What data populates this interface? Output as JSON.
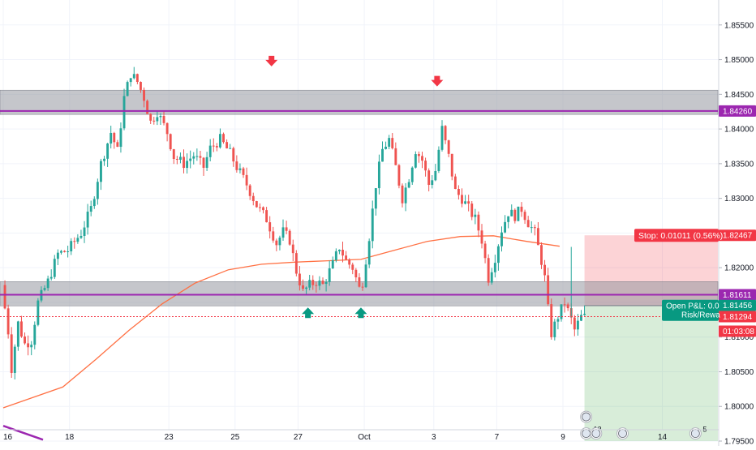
{
  "chart_data": {
    "type": "candlestick",
    "y_axis": {
      "range": [
        1.7943,
        1.8586
      ],
      "ticks": [
        "1.85500",
        "1.85000",
        "1.84500",
        "1.84000",
        "1.83500",
        "1.83000",
        "1.82500",
        "1.82000",
        "1.81500",
        "1.81000",
        "1.80500",
        "1.80000",
        "1.79500"
      ],
      "tick_values": [
        1.855,
        1.85,
        1.845,
        1.84,
        1.835,
        1.83,
        1.825,
        1.82,
        1.815,
        1.81,
        1.805,
        1.8,
        1.795
      ]
    },
    "x_axis": {
      "labels": [
        "16",
        "18",
        "23",
        "25",
        "27",
        "Oct",
        "3",
        "7",
        "9",
        "14"
      ],
      "label_positions": [
        0,
        20,
        50,
        70,
        89,
        109,
        130,
        149,
        169,
        199
      ]
    },
    "bar_count": 176,
    "price_labels": [
      {
        "text": "1.84260",
        "value": 1.8426,
        "color": "#9c27b0"
      },
      {
        "text": "1.82467",
        "value": 1.82467,
        "color": "#f23645"
      },
      {
        "text": "1.81611",
        "value": 1.81611,
        "color": "#9c27b0"
      },
      {
        "text": "1.81456",
        "value": 1.81456,
        "color": "#089981"
      },
      {
        "text": "1.81294",
        "value": 1.81294,
        "color": "#f23645"
      },
      {
        "text": "01:03:08",
        "value": 1.81084,
        "color": "#f23645"
      }
    ],
    "zones": [
      {
        "name": "resistance-zone",
        "from": 1.8456,
        "to": 1.8421,
        "color": "#9598a1"
      },
      {
        "name": "support-zone",
        "from": 1.818,
        "to": 1.8145,
        "color": "#9598a1"
      }
    ],
    "horizontal_lines": [
      {
        "name": "resistance-line",
        "value": 1.8426,
        "color": "#9c27b0"
      },
      {
        "name": "support-line",
        "value": 1.81611,
        "color": "#9c27b0"
      },
      {
        "name": "last-price-line",
        "value": 1.81294,
        "color": "#f23645"
      }
    ],
    "position": {
      "entry": 1.81456,
      "stop": 1.82467,
      "target_bottom": 1.795,
      "start_bar": 175.5,
      "stop_label": "Stop: 0.01011 (0.56%)",
      "pnl_label": "Open P&L: 0.0",
      "rr_label": "Risk/Rewa"
    },
    "markers": [
      {
        "name": "top-arrow-1",
        "bar": 81,
        "value": 1.8495,
        "dir": "down",
        "color": "#f23645"
      },
      {
        "name": "top-arrow-2",
        "bar": 131,
        "value": 1.8466,
        "dir": "down",
        "color": "#f23645"
      },
      {
        "name": "bottom-arrow-1",
        "bar": 92,
        "value": 1.8138,
        "dir": "up",
        "color": "#089981"
      },
      {
        "name": "bottom-arrow-2",
        "bar": 108,
        "value": 1.8138,
        "dir": "up",
        "color": "#089981"
      }
    ],
    "event_icons": [
      {
        "bar": 176,
        "value": 1.7985,
        "badge": ""
      },
      {
        "bar": 176,
        "value": 1.7961,
        "badge": "13"
      },
      {
        "bar": 179,
        "value": 1.7961,
        "badge": ""
      },
      {
        "bar": 187,
        "value": 1.7961,
        "badge": ""
      },
      {
        "bar": 209,
        "value": 1.7961,
        "badge": "5"
      }
    ],
    "moving_average": {
      "color": "#ff7043",
      "points": [
        [
          0,
          1.7998
        ],
        [
          18,
          1.8028
        ],
        [
          28,
          1.8068
        ],
        [
          38,
          1.811
        ],
        [
          48,
          1.8148
        ],
        [
          58,
          1.8178
        ],
        [
          68,
          1.8197
        ],
        [
          78,
          1.8205
        ],
        [
          88,
          1.8208
        ],
        [
          98,
          1.821
        ],
        [
          108,
          1.8212
        ],
        [
          118,
          1.8225
        ],
        [
          128,
          1.8238
        ],
        [
          138,
          1.8245
        ],
        [
          148,
          1.8246
        ],
        [
          158,
          1.8238
        ],
        [
          168,
          1.8231
        ]
      ]
    },
    "trend_line": {
      "color": "#9c27b0",
      "from": [
        0,
        1.7972
      ],
      "to": [
        12,
        1.7952
      ]
    },
    "price_path": [
      [
        0,
        1.8175
      ],
      [
        2,
        1.8108
      ],
      [
        3,
        1.8055
      ],
      [
        5,
        1.812
      ],
      [
        7,
        1.809
      ],
      [
        9,
        1.8095
      ],
      [
        11,
        1.815
      ],
      [
        14,
        1.818
      ],
      [
        17,
        1.822
      ],
      [
        20,
        1.8225
      ],
      [
        24,
        1.825
      ],
      [
        27,
        1.8285
      ],
      [
        30,
        1.835
      ],
      [
        33,
        1.8395
      ],
      [
        35,
        1.8368
      ],
      [
        37,
        1.8445
      ],
      [
        39,
        1.848
      ],
      [
        41,
        1.8468
      ],
      [
        43,
        1.8445
      ],
      [
        45,
        1.841
      ],
      [
        47,
        1.8425
      ],
      [
        50,
        1.8395
      ],
      [
        52,
        1.836
      ],
      [
        55,
        1.835
      ],
      [
        58,
        1.8362
      ],
      [
        61,
        1.8345
      ],
      [
        63,
        1.8372
      ],
      [
        66,
        1.8385
      ],
      [
        69,
        1.8365
      ],
      [
        71,
        1.8345
      ],
      [
        74,
        1.832
      ],
      [
        77,
        1.829
      ],
      [
        80,
        1.827
      ],
      [
        83,
        1.8235
      ],
      [
        85,
        1.8252
      ],
      [
        87,
        1.824
      ],
      [
        89,
        1.8195
      ],
      [
        91,
        1.8165
      ],
      [
        93,
        1.8175
      ],
      [
        95,
        1.818
      ],
      [
        97,
        1.8175
      ],
      [
        100,
        1.8205
      ],
      [
        102,
        1.823
      ],
      [
        104,
        1.821
      ],
      [
        106,
        1.82
      ],
      [
        108,
        1.817
      ],
      [
        109,
        1.818
      ],
      [
        111,
        1.8245
      ],
      [
        113,
        1.832
      ],
      [
        115,
        1.837
      ],
      [
        117,
        1.8385
      ],
      [
        119,
        1.8345
      ],
      [
        121,
        1.83
      ],
      [
        123,
        1.833
      ],
      [
        125,
        1.837
      ],
      [
        127,
        1.8355
      ],
      [
        129,
        1.832
      ],
      [
        131,
        1.834
      ],
      [
        133,
        1.84
      ],
      [
        135,
        1.836
      ],
      [
        137,
        1.831
      ],
      [
        139,
        1.83
      ],
      [
        141,
        1.8285
      ],
      [
        143,
        1.827
      ],
      [
        145,
        1.824
      ],
      [
        147,
        1.8185
      ],
      [
        149,
        1.8215
      ],
      [
        151,
        1.8255
      ],
      [
        153,
        1.828
      ],
      [
        155,
        1.8275
      ],
      [
        157,
        1.8285
      ],
      [
        159,
        1.8265
      ],
      [
        161,
        1.825
      ],
      [
        163,
        1.821
      ],
      [
        164,
        1.8185
      ],
      [
        165,
        1.814
      ],
      [
        166,
        1.8105
      ],
      [
        168,
        1.813
      ],
      [
        170,
        1.815
      ],
      [
        172,
        1.8125
      ],
      [
        173,
        1.811
      ],
      [
        175,
        1.8129
      ]
    ]
  }
}
